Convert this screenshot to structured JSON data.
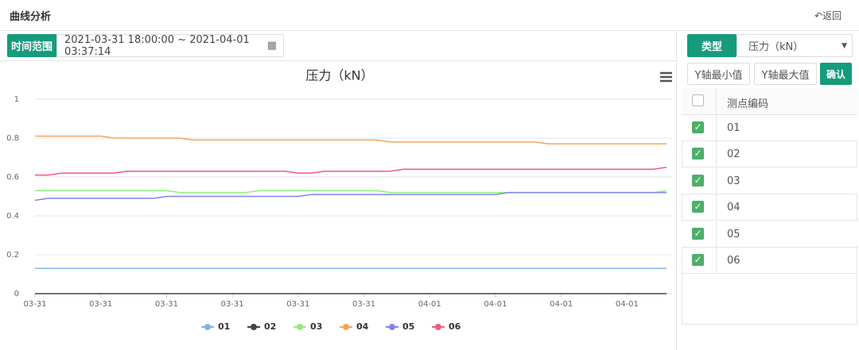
{
  "header": {
    "title": "曲线分析",
    "back": "返回"
  },
  "time_range": {
    "label": "时间范围",
    "value": "2021-03-31 18:00:00 ~ 2021-04-01 03:37:14"
  },
  "controls": {
    "type_label": "类型",
    "type_select": "压力（kN）",
    "y_min": "Y轴最小值",
    "y_max": "Y轴最大值",
    "confirm": "确认"
  },
  "table": {
    "header": "测点编码",
    "rows": [
      "01",
      "02",
      "03",
      "04",
      "05",
      "06"
    ]
  },
  "chart_data": {
    "type": "line",
    "title": "压力（kN）",
    "categories": [
      "03-31",
      null,
      null,
      null,
      null,
      "03-31",
      null,
      null,
      null,
      null,
      "03-31",
      null,
      null,
      null,
      null,
      "03-31",
      null,
      null,
      null,
      null,
      "03-31",
      null,
      null,
      null,
      null,
      "03-31",
      null,
      null,
      null,
      null,
      "04-01",
      null,
      null,
      null,
      null,
      "04-01",
      null,
      null,
      null,
      null,
      "04-01",
      null,
      null,
      null,
      null,
      "04-01",
      null,
      null,
      null
    ],
    "ylim": [
      0,
      1
    ],
    "yticks": [
      0,
      0.2,
      0.4,
      0.6,
      0.8,
      1
    ],
    "grid": true,
    "legend": "bottom",
    "series": [
      {
        "name": "01",
        "color": "#7cb5ec",
        "values": [
          0.13,
          0.13,
          0.13,
          0.13,
          0.13,
          0.13,
          0.13,
          0.13,
          0.13,
          0.13,
          0.13,
          0.13,
          0.13,
          0.13,
          0.13,
          0.13,
          0.13,
          0.13,
          0.13,
          0.13,
          0.13,
          0.13,
          0.13,
          0.13,
          0.13,
          0.13,
          0.13,
          0.13,
          0.13,
          0.13,
          0.13,
          0.13,
          0.13,
          0.13,
          0.13,
          0.13,
          0.13,
          0.13,
          0.13,
          0.13,
          0.13,
          0.13,
          0.13,
          0.13,
          0.13,
          0.13,
          0.13,
          0.13,
          0.13
        ]
      },
      {
        "name": "02",
        "color": "#434348",
        "values": [
          0,
          0,
          0,
          0,
          0,
          0,
          0,
          0,
          0,
          0,
          0,
          0,
          0,
          0,
          0,
          0,
          0,
          0,
          0,
          0,
          0,
          0,
          0,
          0,
          0,
          0,
          0,
          0,
          0,
          0,
          0,
          0,
          0,
          0,
          0,
          0,
          0,
          0,
          0,
          0,
          0,
          0,
          0,
          0,
          0,
          0,
          0,
          0,
          0
        ]
      },
      {
        "name": "03",
        "color": "#90ed7d",
        "values": [
          0.53,
          0.53,
          0.53,
          0.53,
          0.53,
          0.53,
          0.53,
          0.53,
          0.53,
          0.53,
          0.53,
          0.52,
          0.52,
          0.52,
          0.52,
          0.52,
          0.52,
          0.53,
          0.53,
          0.53,
          0.53,
          0.53,
          0.53,
          0.53,
          0.53,
          0.53,
          0.53,
          0.52,
          0.52,
          0.52,
          0.52,
          0.52,
          0.52,
          0.52,
          0.52,
          0.52,
          0.52,
          0.52,
          0.52,
          0.52,
          0.52,
          0.52,
          0.52,
          0.52,
          0.52,
          0.52,
          0.52,
          0.52,
          0.53
        ]
      },
      {
        "name": "04",
        "color": "#f7a35c",
        "values": [
          0.81,
          0.81,
          0.81,
          0.81,
          0.81,
          0.81,
          0.8,
          0.8,
          0.8,
          0.8,
          0.8,
          0.8,
          0.79,
          0.79,
          0.79,
          0.79,
          0.79,
          0.79,
          0.79,
          0.79,
          0.79,
          0.79,
          0.79,
          0.79,
          0.79,
          0.79,
          0.79,
          0.78,
          0.78,
          0.78,
          0.78,
          0.78,
          0.78,
          0.78,
          0.78,
          0.78,
          0.78,
          0.78,
          0.78,
          0.77,
          0.77,
          0.77,
          0.77,
          0.77,
          0.77,
          0.77,
          0.77,
          0.77,
          0.77
        ]
      },
      {
        "name": "05",
        "color": "#8085e9",
        "values": [
          0.48,
          0.49,
          0.49,
          0.49,
          0.49,
          0.49,
          0.49,
          0.49,
          0.49,
          0.49,
          0.5,
          0.5,
          0.5,
          0.5,
          0.5,
          0.5,
          0.5,
          0.5,
          0.5,
          0.5,
          0.5,
          0.51,
          0.51,
          0.51,
          0.51,
          0.51,
          0.51,
          0.51,
          0.51,
          0.51,
          0.51,
          0.51,
          0.51,
          0.51,
          0.51,
          0.51,
          0.52,
          0.52,
          0.52,
          0.52,
          0.52,
          0.52,
          0.52,
          0.52,
          0.52,
          0.52,
          0.52,
          0.52,
          0.52
        ]
      },
      {
        "name": "06",
        "color": "#f15c80",
        "values": [
          0.61,
          0.61,
          0.62,
          0.62,
          0.62,
          0.62,
          0.62,
          0.63,
          0.63,
          0.63,
          0.63,
          0.63,
          0.63,
          0.63,
          0.63,
          0.63,
          0.63,
          0.63,
          0.63,
          0.63,
          0.62,
          0.62,
          0.63,
          0.63,
          0.63,
          0.63,
          0.63,
          0.63,
          0.64,
          0.64,
          0.64,
          0.64,
          0.64,
          0.64,
          0.64,
          0.64,
          0.64,
          0.64,
          0.64,
          0.64,
          0.64,
          0.64,
          0.64,
          0.64,
          0.64,
          0.64,
          0.64,
          0.64,
          0.65
        ]
      }
    ]
  }
}
